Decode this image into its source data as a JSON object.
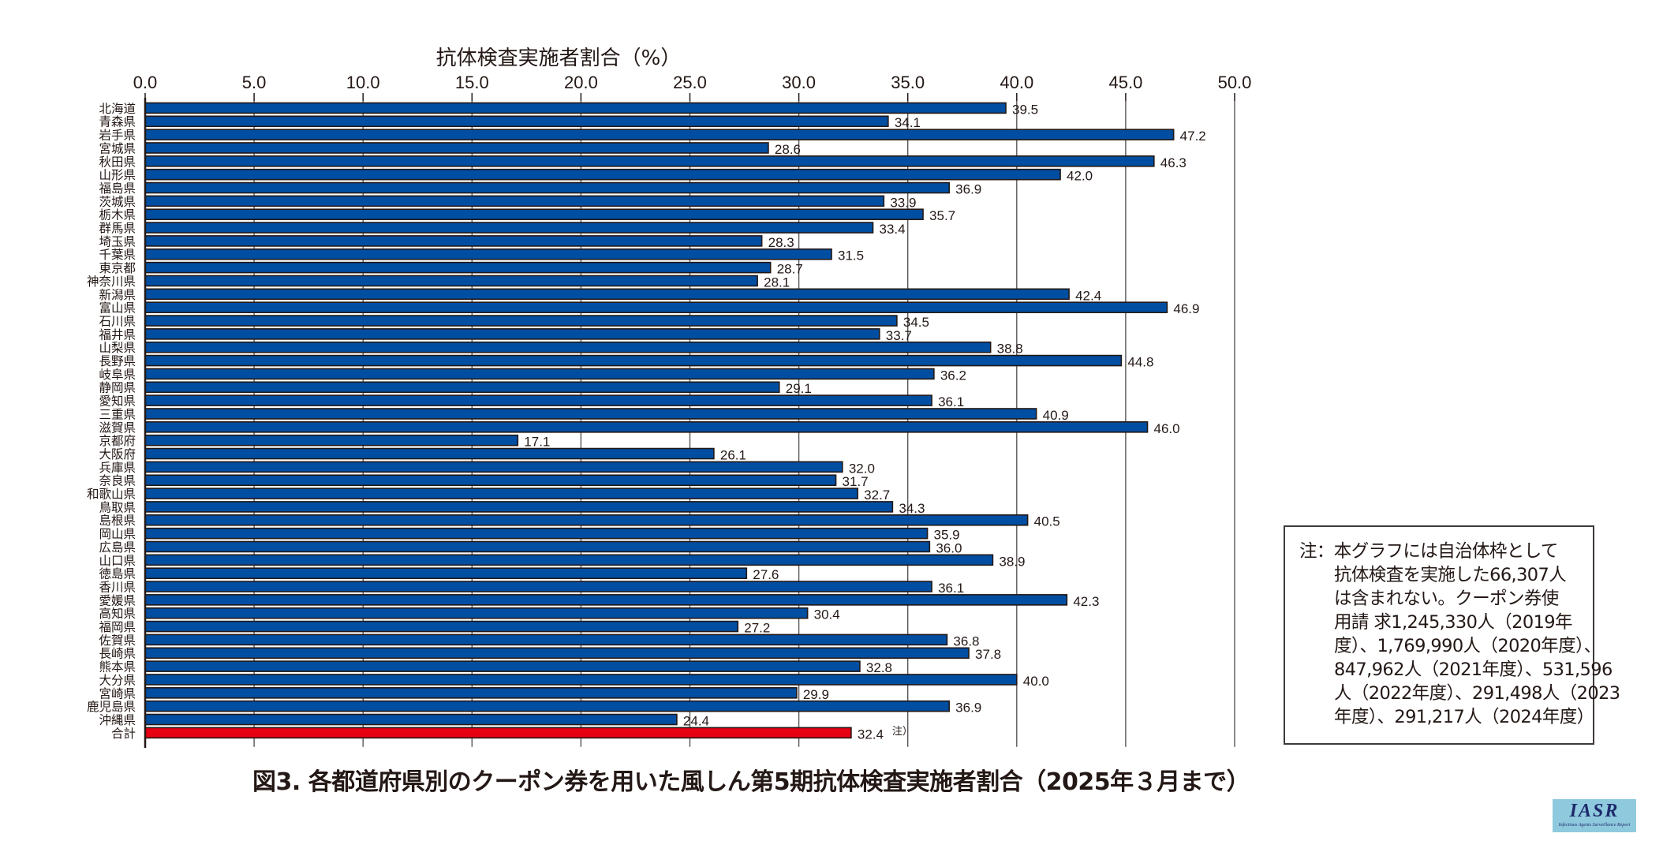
{
  "chart_data": {
    "type": "bar",
    "orientation": "horizontal",
    "xlabel": "抗体検査実施者割合（%）",
    "xlim": [
      0,
      50
    ],
    "xticks": [
      "0.0",
      "5.0",
      "10.0",
      "15.0",
      "20.0",
      "25.0",
      "30.0",
      "35.0",
      "40.0",
      "45.0",
      "50.0"
    ],
    "grid": true,
    "categories": [
      "北海道",
      "青森県",
      "岩手県",
      "宮城県",
      "秋田県",
      "山形県",
      "福島県",
      "茨城県",
      "栃木県",
      "群馬県",
      "埼玉県",
      "千葉県",
      "東京都",
      "神奈川県",
      "新潟県",
      "富山県",
      "石川県",
      "福井県",
      "山梨県",
      "長野県",
      "岐阜県",
      "静岡県",
      "愛知県",
      "三重県",
      "滋賀県",
      "京都府",
      "大阪府",
      "兵庫県",
      "奈良県",
      "和歌山県",
      "鳥取県",
      "島根県",
      "岡山県",
      "広島県",
      "山口県",
      "徳島県",
      "香川県",
      "愛媛県",
      "高知県",
      "福岡県",
      "佐賀県",
      "長崎県",
      "熊本県",
      "大分県",
      "宮崎県",
      "鹿児島県",
      "沖縄県",
      "合計"
    ],
    "values": [
      39.5,
      34.1,
      47.2,
      28.6,
      46.3,
      42.0,
      36.9,
      33.9,
      35.7,
      33.4,
      28.3,
      31.5,
      28.7,
      28.1,
      42.4,
      46.9,
      34.5,
      33.7,
      38.8,
      44.8,
      36.2,
      29.1,
      36.1,
      40.9,
      46.0,
      17.1,
      26.1,
      32.0,
      31.7,
      32.7,
      34.3,
      40.5,
      35.9,
      36.0,
      38.9,
      27.6,
      36.1,
      42.3,
      30.4,
      27.2,
      36.8,
      37.8,
      32.8,
      40.0,
      29.9,
      36.9,
      24.4,
      32.4
    ],
    "value_labels": [
      "39.5",
      "34.1",
      "47.2",
      "28.6",
      "46.3",
      "42.0",
      "36.9",
      "33.9",
      "35.7",
      "33.4",
      "28.3",
      "31.5",
      "28.7",
      "28.1",
      "42.4",
      "46.9",
      "34.5",
      "33.7",
      "38.8",
      "44.8",
      "36.2",
      "29.1",
      "36.1",
      "40.9",
      "46.0",
      "17.1",
      "26.1",
      "32.0",
      "31.7",
      "32.7",
      "34.3",
      "40.5",
      "35.9",
      "36.0",
      "38.9",
      "27.6",
      "36.1",
      "42.3",
      "30.4",
      "27.2",
      "36.8",
      "37.8",
      "32.8",
      "40.0",
      "29.9",
      "36.9",
      "24.4",
      "32.4"
    ],
    "total_note_marker": "注）",
    "colors": {
      "prefecture": "#004ea2",
      "total": "#e60012",
      "outline": "#231815"
    },
    "title": "図3. 各都道府県別のクーポン券を用いた風しん第5期抗体検査実施者割合（2025年３月まで）"
  },
  "note": {
    "lines": [
      "注：本グラフには自治体枠として",
      "抗体検査を実施した66,307人",
      "は含まれない。クーポン券使",
      "用請 求1,245,330人（2019年",
      "度）、1,769,990人（2020年度）、",
      "847,962人（2021年度）、531,596",
      "人（2022年度）、291,498人（2023",
      "年度）、291,217人（2024年度）"
    ]
  },
  "caption": "図3. 各都道府県別のクーポン券を用いた風しん第5期抗体検査実施者割合（2025年３月まで）",
  "logo": {
    "main": "IASR",
    "sub": "Infectious Agents Surveillance Report"
  }
}
